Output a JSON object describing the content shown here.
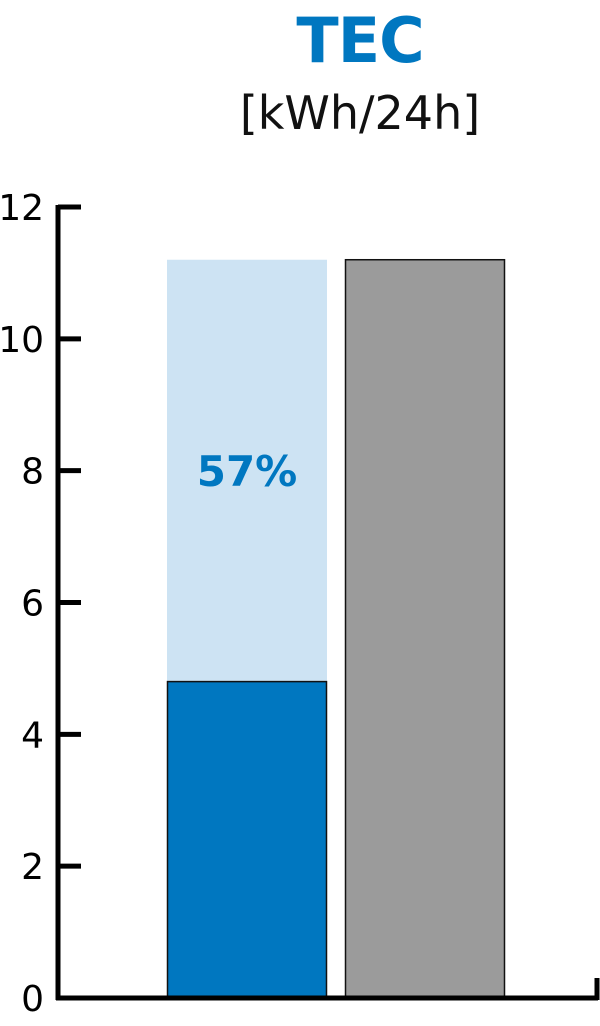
{
  "chart_data": {
    "type": "bar",
    "title": "TEC",
    "ylabel": "[kWh/24h]",
    "ylim": [
      0,
      12
    ],
    "yticks": [
      0,
      2,
      4,
      6,
      8,
      10,
      12
    ],
    "grid": false,
    "bars": [
      {
        "value": 4.8,
        "background_value": 11.2,
        "color": "#0077c0",
        "background_color": "#cde3f3",
        "annotation": "57%",
        "annotation_color": "#0077c0"
      },
      {
        "value": 11.2,
        "color": "#9b9b9b"
      }
    ]
  }
}
